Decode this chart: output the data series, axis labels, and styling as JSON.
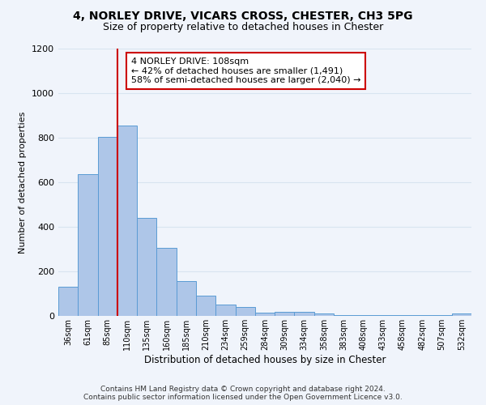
{
  "title1": "4, NORLEY DRIVE, VICARS CROSS, CHESTER, CH3 5PG",
  "title2": "Size of property relative to detached houses in Chester",
  "xlabel": "Distribution of detached houses by size in Chester",
  "ylabel": "Number of detached properties",
  "categories": [
    "36sqm",
    "61sqm",
    "85sqm",
    "110sqm",
    "135sqm",
    "160sqm",
    "185sqm",
    "210sqm",
    "234sqm",
    "259sqm",
    "284sqm",
    "309sqm",
    "334sqm",
    "358sqm",
    "383sqm",
    "408sqm",
    "433sqm",
    "458sqm",
    "482sqm",
    "507sqm",
    "532sqm"
  ],
  "values": [
    130,
    638,
    805,
    853,
    440,
    305,
    155,
    92,
    50,
    40,
    15,
    20,
    17,
    10,
    5,
    3,
    3,
    2,
    2,
    2,
    10
  ],
  "bar_color": "#aec6e8",
  "bar_edge_color": "#5a9bd4",
  "vline_color": "#cc0000",
  "annotation_text": "4 NORLEY DRIVE: 108sqm\n← 42% of detached houses are smaller (1,491)\n58% of semi-detached houses are larger (2,040) →",
  "annotation_box_color": "#ffffff",
  "annotation_box_edge_color": "#cc0000",
  "ylim": [
    0,
    1200
  ],
  "yticks": [
    0,
    200,
    400,
    600,
    800,
    1000,
    1200
  ],
  "footer1": "Contains HM Land Registry data © Crown copyright and database right 2024.",
  "footer2": "Contains public sector information licensed under the Open Government Licence v3.0.",
  "background_color": "#f0f4fb",
  "grid_color": "#d8e4f0",
  "title1_fontsize": 10,
  "title2_fontsize": 9,
  "annotation_fontsize": 8,
  "ylabel_fontsize": 8,
  "xlabel_fontsize": 8.5
}
